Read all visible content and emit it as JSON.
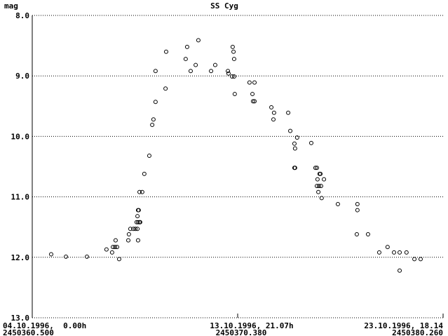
{
  "chart_data": {
    "type": "scatter",
    "title": "SS Cyg",
    "y_label": "mag",
    "x": [
      2450361.41,
      2450362.12,
      2450363.13,
      2450364.07,
      2450364.34,
      2450364.38,
      2450364.48,
      2450364.51,
      2450364.58,
      2450364.68,
      2450365.12,
      2450365.15,
      2450365.22,
      2450365.36,
      2450365.46,
      2450365.52,
      2450365.56,
      2450365.59,
      2450365.56,
      2450365.62,
      2450365.59,
      2450365.66,
      2450365.69,
      2450365.59,
      2450365.66,
      2450365.79,
      2450365.89,
      2450366.13,
      2450366.27,
      2450366.33,
      2450366.43,
      2450366.43,
      2450366.91,
      2450366.94,
      2450367.88,
      2450367.95,
      2450368.12,
      2450368.36,
      2450368.49,
      2450369.1,
      2450369.3,
      2450369.91,
      2450369.94,
      2450370.11,
      2450370.21,
      2450370.14,
      2450370.18,
      2450370.21,
      2450370.24,
      2450370.95,
      2450371.09,
      2450371.12,
      2450371.19,
      2450371.19,
      2450372.0,
      2450372.1,
      2450372.13,
      2450372.81,
      2450372.91,
      2450373.11,
      2450373.14,
      2450373.24,
      2450373.11,
      2450373.14,
      2450374.12,
      2450374.19,
      2450374.22,
      2450374.26,
      2450374.29,
      2450374.32,
      2450374.36,
      2450374.39,
      2450374.19,
      2450374.42,
      2450374.53,
      2450373.92,
      2450375.2,
      2450376.14,
      2450376.14,
      2450376.11,
      2450376.65,
      2450377.19,
      2450377.59,
      2450377.9,
      2450378.17,
      2450378.17,
      2450378.5,
      2450378.88,
      2450379.18
    ],
    "values": [
      11.95,
      11.99,
      11.99,
      11.87,
      11.92,
      11.83,
      11.83,
      11.72,
      11.83,
      12.03,
      11.72,
      11.62,
      11.53,
      11.53,
      11.53,
      11.42,
      11.53,
      11.72,
      11.32,
      11.22,
      11.42,
      11.42,
      11.42,
      11.22,
      10.92,
      10.92,
      10.62,
      10.32,
      9.81,
      9.72,
      9.43,
      8.92,
      9.21,
      8.6,
      8.72,
      8.52,
      8.92,
      8.82,
      8.41,
      8.92,
      8.82,
      8.92,
      8.96,
      9.01,
      9.01,
      8.52,
      8.6,
      8.72,
      9.3,
      9.11,
      9.3,
      9.42,
      9.11,
      9.42,
      9.52,
      9.72,
      9.61,
      9.61,
      9.91,
      10.12,
      10.2,
      10.02,
      10.52,
      10.52,
      10.52,
      10.52,
      10.71,
      10.92,
      10.82,
      10.62,
      10.62,
      10.82,
      10.82,
      11.02,
      10.71,
      10.11,
      11.12,
      11.12,
      11.22,
      11.62,
      11.62,
      11.92,
      11.83,
      11.92,
      11.92,
      12.22,
      11.92,
      12.03,
      12.03
    ],
    "color": "#000000",
    "xlim": [
      2450360.5,
      2450380.26
    ],
    "xticks": [
      {
        "value": 2450360.5,
        "label": "2450360.500"
      },
      {
        "value": 2450370.38,
        "label": "2450370.380"
      },
      {
        "value": 2450380.26,
        "label": "2450380.260"
      }
    ],
    "xtick_dates": [
      "04.10.1996,  0.00h",
      "13.10.1996, 21.07h",
      "23.10.1996, 18.14"
    ],
    "ylim": [
      13,
      8
    ],
    "yticks": [
      {
        "value": 8,
        "label": "8.0"
      },
      {
        "value": 9,
        "label": "9.0"
      },
      {
        "value": 10,
        "label": "10.0"
      },
      {
        "value": 11,
        "label": "11.0"
      },
      {
        "value": 12,
        "label": "12.0"
      },
      {
        "value": 13,
        "label": "13.0"
      }
    ],
    "grid": true
  }
}
